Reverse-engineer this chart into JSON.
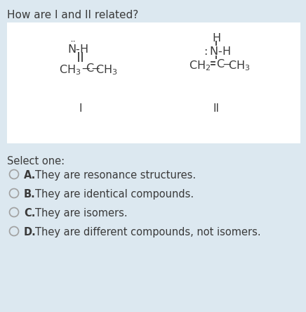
{
  "title": "How are I and II related?",
  "bg_color": "#dce8f0",
  "white_box_color": "#ffffff",
  "text_color": "#3a3a3a",
  "select_one": "Select one:",
  "options_letter": [
    "A.",
    "B.",
    "C.",
    "D."
  ],
  "options_text": [
    "They are resonance structures.",
    "They are identical compounds.",
    "They are isomers.",
    "They are different compounds, not isomers."
  ],
  "struct_I_label": "I",
  "struct_II_label": "II",
  "fig_w": 4.36,
  "fig_h": 4.44,
  "dpi": 100
}
